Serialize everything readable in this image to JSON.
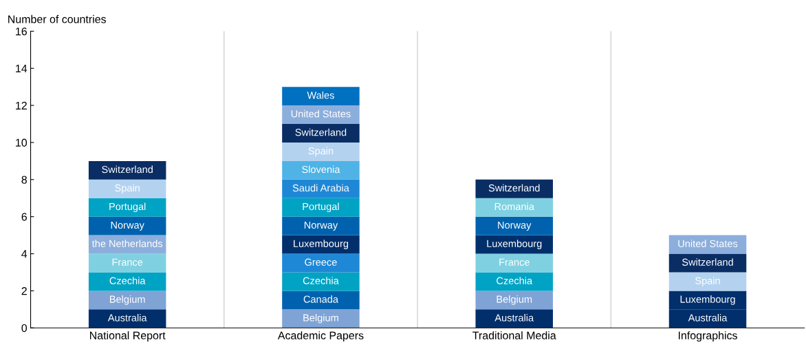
{
  "chart_data": {
    "type": "bar",
    "stacked": true,
    "ylabel": "Number of countries",
    "categories": [
      "National Report",
      "Academic Papers",
      "Traditional Media",
      "Infographics"
    ],
    "ylim": [
      0,
      16
    ],
    "yticks": [
      0,
      2,
      4,
      6,
      8,
      10,
      12,
      14,
      16
    ],
    "grid": "x",
    "series": [
      {
        "values": [
          1,
          1,
          1,
          1
        ],
        "colors": [
          "#002f6c",
          "#7fa3d5",
          "#002f6c",
          "#002f6c"
        ],
        "value_labels": [
          "Australia",
          "Belgium",
          "Australia",
          "Australia"
        ]
      },
      {
        "values": [
          1,
          1,
          1,
          1
        ],
        "colors": [
          "#7fa3d5",
          "#0062ae",
          "#7fa3d5",
          "#002f6c"
        ],
        "value_labels": [
          "Belgium",
          "Canada",
          "Belgium",
          "Luxembourg"
        ]
      },
      {
        "values": [
          1,
          1,
          1,
          1
        ],
        "colors": [
          "#00a3c4",
          "#00a3c4",
          "#00a3c4",
          "#b3d2f0"
        ],
        "value_labels": [
          "Czechia",
          "Czechia",
          "Czechia",
          "Spain"
        ]
      },
      {
        "values": [
          1,
          1,
          1,
          1
        ],
        "colors": [
          "#7fd1e1",
          "#1f88d6",
          "#7fd1e1",
          "#0a2d64"
        ],
        "value_labels": [
          "France",
          "Greece",
          "France",
          "Switzerland"
        ]
      },
      {
        "values": [
          1,
          1,
          1,
          1
        ],
        "colors": [
          "#8caedc",
          "#002f6c",
          "#002f6c",
          "#8caedc"
        ],
        "value_labels": [
          "the Netherlands",
          "Luxembourg",
          "Luxembourg",
          "United States"
        ]
      },
      {
        "values": [
          1,
          1,
          1,
          null
        ],
        "colors": [
          "#0062ae",
          "#0062ae",
          "#0062ae",
          null
        ],
        "value_labels": [
          "Norway",
          "Norway",
          "Norway",
          null
        ]
      },
      {
        "values": [
          1,
          1,
          1,
          null
        ],
        "colors": [
          "#00a3c4",
          "#00a3c4",
          "#7fd1e1",
          null
        ],
        "value_labels": [
          "Portugal",
          "Portugal",
          "Romania",
          null
        ]
      },
      {
        "values": [
          1,
          1,
          1,
          null
        ],
        "colors": [
          "#b3d2f0",
          "#1f88d6",
          "#0a2d64",
          null
        ],
        "value_labels": [
          "Spain",
          "Saudi Arabia",
          "Switzerland",
          null
        ]
      },
      {
        "values": [
          1,
          1,
          null,
          null
        ],
        "colors": [
          "#0a2d64",
          "#4fb3e6",
          null,
          null
        ],
        "value_labels": [
          "Switzerland",
          "Slovenia",
          null,
          null
        ]
      },
      {
        "values": [
          null,
          1,
          null,
          null
        ],
        "colors": [
          null,
          "#b3d2f0",
          null,
          null
        ],
        "value_labels": [
          null,
          "Spain",
          null,
          null
        ]
      },
      {
        "values": [
          null,
          1,
          null,
          null
        ],
        "colors": [
          null,
          "#0a2d64",
          null,
          null
        ],
        "value_labels": [
          null,
          "Switzerland",
          null,
          null
        ]
      },
      {
        "values": [
          null,
          1,
          null,
          null
        ],
        "colors": [
          null,
          "#8caedc",
          null,
          null
        ],
        "value_labels": [
          null,
          "United States",
          null,
          null
        ]
      },
      {
        "values": [
          null,
          1,
          null,
          null
        ],
        "colors": [
          null,
          "#0070c0",
          null,
          null
        ],
        "value_labels": [
          null,
          "Wales",
          null,
          null
        ]
      }
    ]
  }
}
